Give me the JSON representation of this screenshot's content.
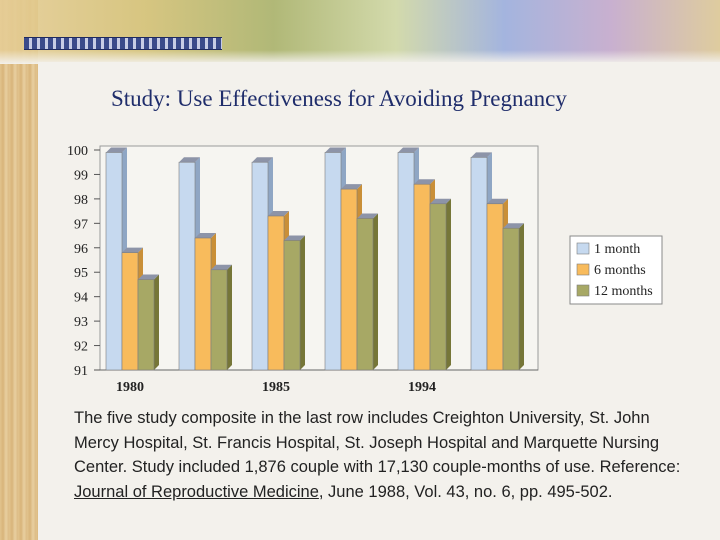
{
  "slide": {
    "title": "Study: Use Effectiveness for Avoiding Pregnancy",
    "description_part1": "The five study composite in the last row includes Creighton University, St. John Mercy Hospital, St. Francis Hospital, St. Joseph Hospital and Marquette Nursing Center.  Study included 1,876 couple with 17,130 couple-months of use.  Reference: ",
    "reference": "Journal of Reproductive Medicine",
    "description_part2": ", June 1988, Vol. 43, no. 6, pp. 495-502."
  },
  "colors": {
    "series": [
      "#c6d9ef",
      "#f8bb5c",
      "#a7a865"
    ],
    "series_side": [
      "#8fa6c4",
      "#c98f38",
      "#767638"
    ],
    "bar_top": "#8d94a8",
    "title": "#1f2d6b"
  },
  "chart_data": {
    "type": "bar",
    "title": "",
    "xlabel": "",
    "ylabel": "",
    "ylim": [
      91,
      100
    ],
    "yticks": [
      "100",
      "99",
      "98",
      "97",
      "96",
      "95",
      "94",
      "93",
      "92",
      "91"
    ],
    "group_labels": [
      "1980",
      "",
      "1985",
      "",
      "1994",
      ""
    ],
    "series": [
      {
        "name": "1 month",
        "values": [
          99.9,
          99.5,
          99.5,
          99.9,
          99.9,
          99.7
        ]
      },
      {
        "name": "6 months",
        "values": [
          95.8,
          96.4,
          97.3,
          98.4,
          98.6,
          97.8
        ]
      },
      {
        "name": "12 months",
        "values": [
          94.7,
          95.1,
          96.3,
          97.2,
          97.8,
          96.8
        ]
      }
    ],
    "legend_position": "right"
  }
}
